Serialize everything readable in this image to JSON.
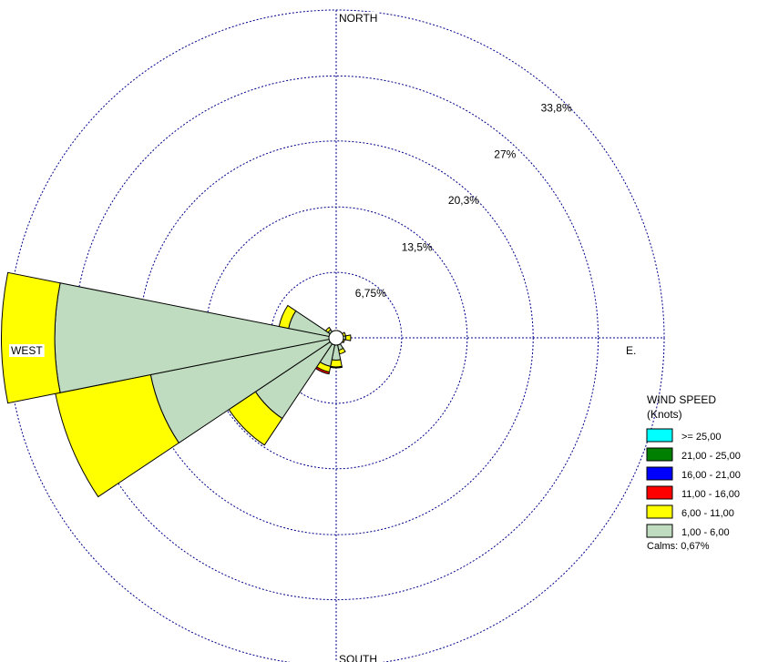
{
  "chart_data": {
    "type": "wind-rose",
    "direction_labels": {
      "north": "NORTH",
      "south": "SOUTH",
      "east": "E.",
      "west": "WEST"
    },
    "ring_labels": [
      "6,75%",
      "13,5%",
      "20,3%",
      "27%",
      "33,8%"
    ],
    "ring_values": [
      6.75,
      13.5,
      20.3,
      27,
      33.8
    ],
    "max_ring_percent": 33.8,
    "legend": {
      "title": "WIND SPEED",
      "subtitle": "(Knots)",
      "items": [
        {
          "label": ">= 25,00",
          "color": "#00ffff"
        },
        {
          "label": "21,00 - 25,00",
          "color": "#008000"
        },
        {
          "label": "16,00 - 21,00",
          "color": "#0000ff"
        },
        {
          "label": "11,00 - 16,00",
          "color": "#ff0000"
        },
        {
          "label": "6,00 - 11,00",
          "color": "#ffff00"
        },
        {
          "label": "1,00 - 6,00",
          "color": "#c0dcc0"
        }
      ],
      "calms": "Calms: 0,67%"
    },
    "series_order": [
      "1,00 - 6,00",
      "6,00 - 11,00",
      "11,00 - 16,00"
    ],
    "series_colors": {
      "1,00 - 6,00": "#c0dcc0",
      "6,00 - 11,00": "#ffff00",
      "11,00 - 16,00": "#ff0000"
    },
    "sectors": [
      {
        "direction_deg": 0,
        "values": [
          0.2,
          0.0,
          0.0
        ]
      },
      {
        "direction_deg": 22.5,
        "values": [
          0.3,
          0.1,
          0.0
        ]
      },
      {
        "direction_deg": 45,
        "values": [
          0.4,
          0.2,
          0.0
        ]
      },
      {
        "direction_deg": 67.5,
        "values": [
          0.7,
          0.3,
          0.0
        ]
      },
      {
        "direction_deg": 90,
        "values": [
          1.0,
          0.5,
          0.0
        ]
      },
      {
        "direction_deg": 112.5,
        "values": [
          0.7,
          0.2,
          0.0
        ]
      },
      {
        "direction_deg": 135,
        "values": [
          0.5,
          0.1,
          0.0
        ]
      },
      {
        "direction_deg": 157.5,
        "values": [
          1.3,
          0.4,
          0.0
        ]
      },
      {
        "direction_deg": 180,
        "values": [
          2.3,
          0.7,
          0.1
        ]
      },
      {
        "direction_deg": 202.5,
        "values": [
          3.0,
          0.6,
          0.2
        ]
      },
      {
        "direction_deg": 225,
        "values": [
          10.0,
          3.3,
          0.0
        ]
      },
      {
        "direction_deg": 247.5,
        "values": [
          19.5,
          10.0,
          0.0
        ]
      },
      {
        "direction_deg": 270,
        "values": [
          29.0,
          5.5,
          0.0
        ]
      },
      {
        "direction_deg": 292.5,
        "values": [
          5.0,
          1.0,
          0.0
        ]
      },
      {
        "direction_deg": 315,
        "values": [
          1.0,
          0.3,
          0.0
        ]
      },
      {
        "direction_deg": 337.5,
        "values": [
          0.5,
          0.1,
          0.0
        ]
      }
    ]
  }
}
